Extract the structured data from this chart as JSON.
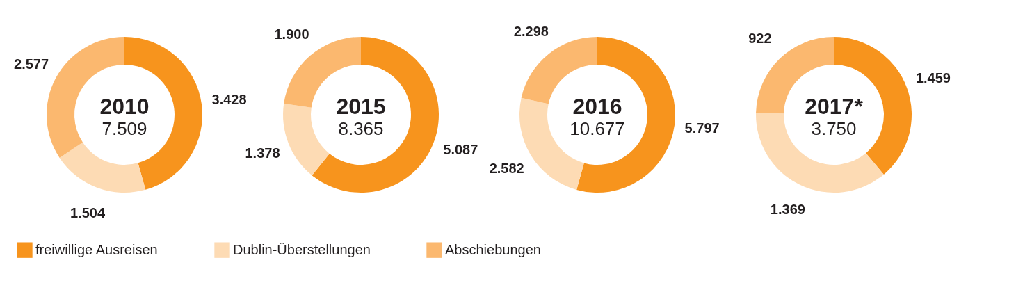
{
  "chart_data": [
    {
      "type": "donut",
      "title": "2010",
      "subtitle": "7.509",
      "categories": [
        "freiwillige Ausreisen",
        "Dublin-Überstellungen",
        "Abschiebungen"
      ],
      "values": [
        3428,
        1504,
        2577
      ],
      "colors": [
        "#f7941d",
        "#fddbb4",
        "#fbb86f"
      ],
      "value_labels": [
        "3.428",
        "1.504",
        "2.577"
      ],
      "legend": "bottom"
    },
    {
      "type": "donut",
      "title": "2015",
      "subtitle": "8.365",
      "categories": [
        null,
        null,
        null
      ],
      "values": [
        5087,
        1378,
        1900
      ],
      "colors": [
        "#f7941d",
        "#fddbb4",
        "#fbb86f"
      ],
      "value_labels": [
        "5.087",
        "1.378",
        "1.900"
      ]
    },
    {
      "type": "donut",
      "title": "2016",
      "subtitle": "10.677",
      "categories": [
        null,
        null,
        null
      ],
      "values": [
        5797,
        2582,
        2298
      ],
      "colors": [
        "#f7941d",
        "#fddbb4",
        "#fbb86f"
      ],
      "value_labels": [
        "5.797",
        "2.582",
        "2.298"
      ]
    },
    {
      "type": "donut",
      "title": "2017*",
      "subtitle": "3.750",
      "categories": [
        null,
        null,
        null
      ],
      "values": [
        1459,
        1369,
        922
      ],
      "colors": [
        "#f7941d",
        "#fddbb4",
        "#fbb86f"
      ],
      "value_labels": [
        "1.459",
        "1.369",
        "922"
      ]
    }
  ]
}
